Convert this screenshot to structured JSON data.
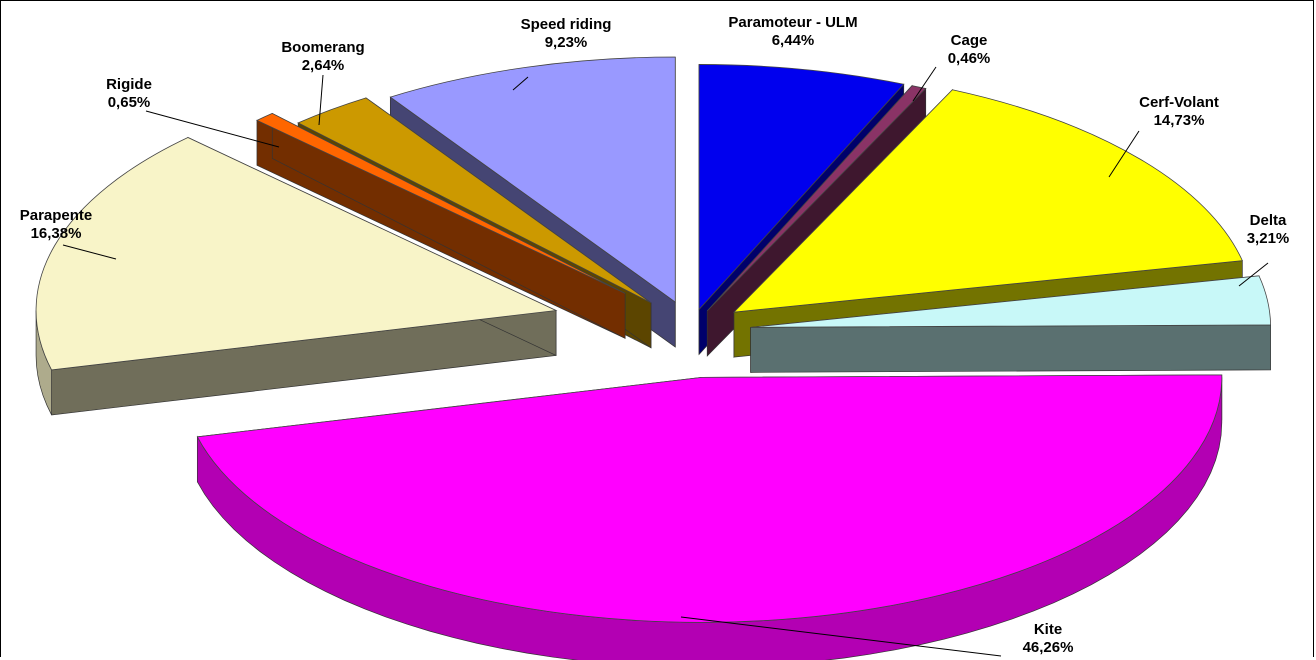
{
  "chart_data": {
    "type": "pie",
    "style": "3d-exploded",
    "legend": "none",
    "slices": [
      {
        "name": "Paramoteur - ULM",
        "value": 6.44,
        "label": "6,44%",
        "color": "#0000ee"
      },
      {
        "name": "Cage",
        "value": 0.46,
        "label": "0,46%",
        "color": "#8a3366"
      },
      {
        "name": "Cerf-Volant",
        "value": 14.73,
        "label": "14,73%",
        "color": "#ffff00"
      },
      {
        "name": "Delta",
        "value": 3.21,
        "label": "3,21%",
        "color": "#c8f8f8"
      },
      {
        "name": "Kite",
        "value": 46.26,
        "label": "46,26%",
        "color": "#ff00ff"
      },
      {
        "name": "Parapente",
        "value": 16.38,
        "label": "16,38%",
        "color": "#f8f4c8"
      },
      {
        "name": "Rigide",
        "value": 0.65,
        "label": "0,65%",
        "color": "#ff6600"
      },
      {
        "name": "Boomerang",
        "value": 2.64,
        "label": "2,64%",
        "color": "#cc9900"
      },
      {
        "name": "Speed riding",
        "value": 9.23,
        "label": "9,23%",
        "color": "#9999ff"
      }
    ]
  }
}
